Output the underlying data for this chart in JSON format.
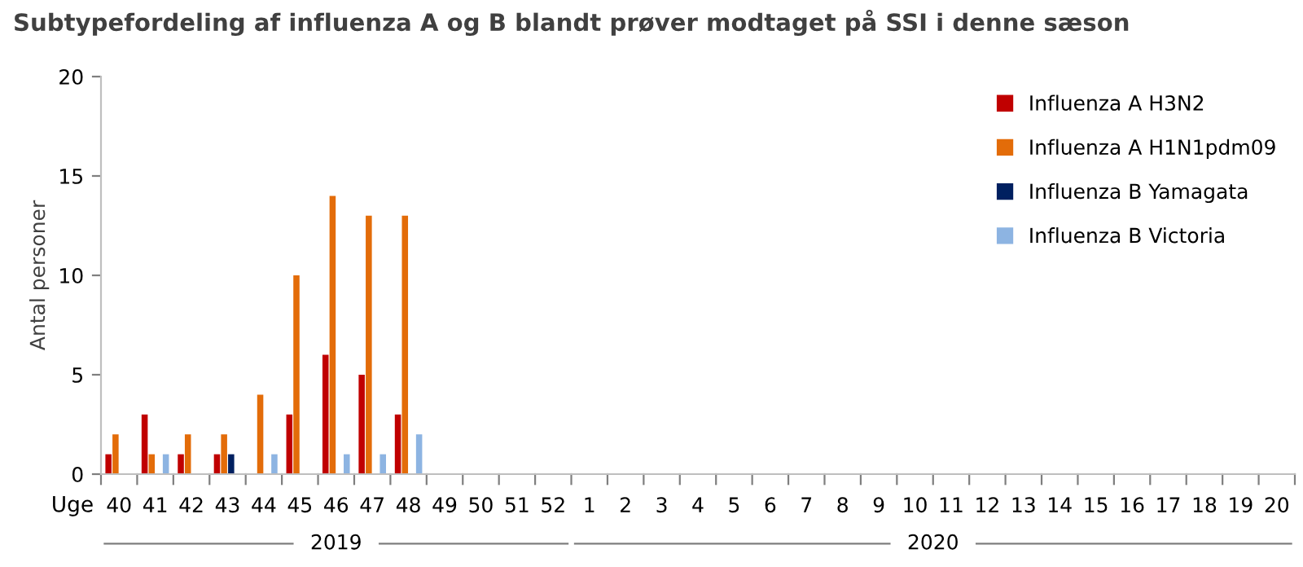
{
  "chart_data": {
    "type": "bar",
    "title": "Subtypefordeling af influenza A og B blandt prøver modtaget på SSI i denne sæson",
    "ylabel": "Antal personer",
    "categories": [
      "40",
      "41",
      "42",
      "43",
      "44",
      "45",
      "46",
      "47",
      "48",
      "49",
      "50",
      "51",
      "52",
      "1",
      "2",
      "3",
      "4",
      "5",
      "6",
      "7",
      "8",
      "9",
      "10",
      "11",
      "12",
      "13",
      "14",
      "15",
      "16",
      "17",
      "18",
      "19",
      "20"
    ],
    "series": [
      {
        "name": "Influenza A H3N2",
        "color": "#c00000",
        "values": [
          1,
          3,
          1,
          1,
          0,
          3,
          6,
          5,
          3,
          null,
          null,
          null,
          null,
          null,
          null,
          null,
          null,
          null,
          null,
          null,
          null,
          null,
          null,
          null,
          null,
          null,
          null,
          null,
          null,
          null,
          null,
          null,
          null
        ]
      },
      {
        "name": "Influenza A H1N1pdm09",
        "color": "#e36c09",
        "values": [
          2,
          1,
          2,
          2,
          4,
          10,
          14,
          13,
          13,
          null,
          null,
          null,
          null,
          null,
          null,
          null,
          null,
          null,
          null,
          null,
          null,
          null,
          null,
          null,
          null,
          null,
          null,
          null,
          null,
          null,
          null,
          null,
          null
        ]
      },
      {
        "name": "Influenza B Yamagata",
        "color": "#002060",
        "values": [
          0,
          0,
          0,
          1,
          0,
          0,
          0,
          0,
          0,
          null,
          null,
          null,
          null,
          null,
          null,
          null,
          null,
          null,
          null,
          null,
          null,
          null,
          null,
          null,
          null,
          null,
          null,
          null,
          null,
          null,
          null,
          null,
          null
        ]
      },
      {
        "name": "Influenza B Victoria",
        "color": "#8db4e2",
        "values": [
          0,
          1,
          0,
          0,
          1,
          0,
          1,
          1,
          2,
          null,
          null,
          null,
          null,
          null,
          null,
          null,
          null,
          null,
          null,
          null,
          null,
          null,
          null,
          null,
          null,
          null,
          null,
          null,
          null,
          null,
          null,
          null,
          null
        ]
      }
    ],
    "ylim": [
      0,
      20
    ],
    "yticks": [
      0,
      5,
      10,
      15,
      20
    ],
    "grid": false,
    "legend": "top right",
    "annotations": [
      "Uge",
      "2019",
      "2020"
    ]
  }
}
